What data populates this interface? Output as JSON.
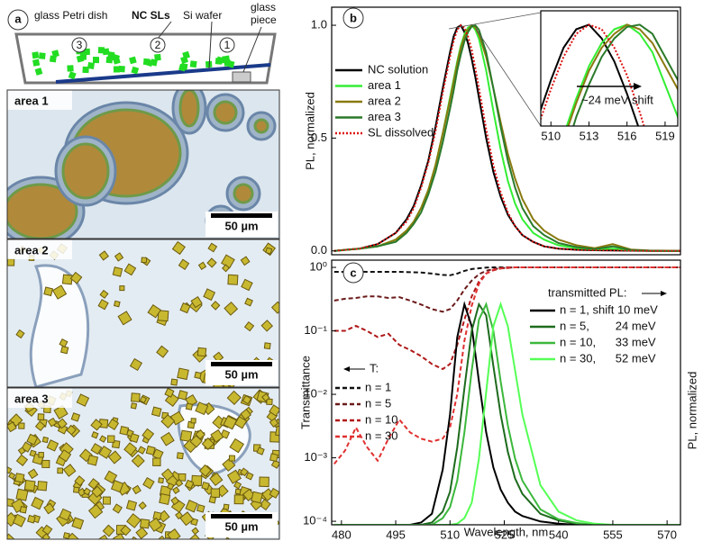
{
  "panel_a": {
    "letter": "a",
    "labels": {
      "dish": "glass Petri dish",
      "sls": "NC SLs",
      "wafer": "Si wafer",
      "piece": [
        "glass",
        "piece"
      ],
      "n3": "3",
      "n2": "2",
      "n1": "1"
    },
    "images": [
      {
        "label": "area 1",
        "scale": "50 µm"
      },
      {
        "label": "area 2",
        "scale": "50 µm"
      },
      {
        "label": "area 3",
        "scale": "50 µm"
      }
    ]
  },
  "chart_data": [
    {
      "type": "line",
      "letter": "b",
      "ylabel": "PL, normalized",
      "x": [
        478,
        485,
        490,
        495,
        498,
        500,
        502,
        504,
        506,
        508,
        510,
        511,
        512,
        513,
        514,
        515,
        516,
        517,
        518,
        520,
        522,
        524,
        526,
        528,
        530,
        533,
        536,
        540,
        545,
        550,
        555,
        560,
        565,
        570,
        574
      ],
      "xlim": [
        477.3,
        573.7
      ],
      "ylim": [
        -0.017,
        1.08
      ],
      "yticks": [
        {
          "value": 0,
          "label": "0.0"
        },
        0.5,
        {
          "value": 1,
          "label": "1.0"
        }
      ],
      "series": [
        {
          "name": "NC solution",
          "color": "#000000",
          "linestyle": "solid",
          "values": [
            0,
            0.01,
            0.03,
            0.08,
            0.14,
            0.2,
            0.29,
            0.4,
            0.55,
            0.72,
            0.88,
            0.95,
            0.99,
            1.0,
            0.97,
            0.92,
            0.85,
            0.77,
            0.68,
            0.5,
            0.35,
            0.24,
            0.16,
            0.11,
            0.07,
            0.04,
            0.02,
            0.01,
            0.005,
            0.003,
            0.002,
            0.001,
            0,
            0,
            0
          ]
        },
        {
          "name": "area 1",
          "color": "#33ee33",
          "linestyle": "solid",
          "values": [
            0,
            0.01,
            0.02,
            0.05,
            0.09,
            0.13,
            0.19,
            0.27,
            0.38,
            0.52,
            0.68,
            0.76,
            0.84,
            0.91,
            0.96,
            0.99,
            1.0,
            0.98,
            0.94,
            0.8,
            0.62,
            0.45,
            0.31,
            0.21,
            0.14,
            0.08,
            0.05,
            0.025,
            0.012,
            0.006,
            0.01,
            0.003,
            0.001,
            0,
            0
          ]
        },
        {
          "name": "area 2",
          "color": "#8a7a10",
          "linestyle": "solid",
          "values": [
            0,
            0.01,
            0.02,
            0.05,
            0.09,
            0.13,
            0.19,
            0.27,
            0.38,
            0.52,
            0.67,
            0.75,
            0.83,
            0.9,
            0.95,
            0.98,
            1.0,
            0.99,
            0.96,
            0.86,
            0.72,
            0.57,
            0.43,
            0.32,
            0.23,
            0.14,
            0.09,
            0.05,
            0.025,
            0.012,
            0.03,
            0.006,
            0.002,
            0.001,
            0
          ]
        },
        {
          "name": "area 3",
          "color": "#2a7a2a",
          "linestyle": "solid",
          "values": [
            0,
            0.01,
            0.02,
            0.04,
            0.08,
            0.12,
            0.17,
            0.25,
            0.35,
            0.48,
            0.63,
            0.71,
            0.8,
            0.87,
            0.93,
            0.97,
            0.995,
            1.0,
            0.98,
            0.88,
            0.72,
            0.55,
            0.4,
            0.28,
            0.19,
            0.11,
            0.07,
            0.035,
            0.017,
            0.008,
            0.02,
            0.004,
            0.001,
            0,
            0
          ]
        },
        {
          "name": "SL dissolved",
          "color": "#dd1111",
          "linestyle": "dotted",
          "values": [
            0,
            0.01,
            0.03,
            0.08,
            0.13,
            0.19,
            0.28,
            0.39,
            0.53,
            0.7,
            0.86,
            0.93,
            0.98,
            1.0,
            0.99,
            0.95,
            0.89,
            0.81,
            0.72,
            0.54,
            0.38,
            0.26,
            0.17,
            0.11,
            0.07,
            0.04,
            0.02,
            0.01,
            0.005,
            0.003,
            0.002,
            0.001,
            0,
            0,
            0
          ]
        }
      ]
    },
    {
      "type": "line",
      "annotation": "~24 meV shift",
      "xlim": [
        509.2,
        520
      ],
      "ylim": [
        0.78,
        1.03
      ],
      "xticks": [
        510,
        513,
        516,
        519
      ]
    },
    {
      "type": "line",
      "letter": "c",
      "ylabel": "Transmittance",
      "y2label": "PL, normalized",
      "xlabel": "Wavelength, nm",
      "legend_title": "T:",
      "legend2_title": "transmitted PL:",
      "log_y": true,
      "x": [
        478,
        481,
        484,
        487,
        490,
        493,
        496,
        499,
        502,
        505,
        508,
        510,
        512,
        514,
        516,
        518,
        520,
        522,
        524,
        526,
        528,
        530,
        535,
        540,
        545,
        550,
        555,
        560,
        565,
        570,
        574
      ],
      "xlim": [
        477.3,
        573.7
      ],
      "ylim": [
        8.8e-05,
        1.3
      ],
      "y2lim": [
        0,
        1.2
      ],
      "xticks": [
        480,
        495,
        510,
        525,
        540,
        555,
        570
      ],
      "yticks": [
        {
          "value": 0.0001,
          "label": "10⁻⁴"
        },
        {
          "value": 0.001,
          "label": "10⁻³"
        },
        {
          "value": 0.01,
          "label": "10⁻²"
        },
        {
          "value": 0.1,
          "label": "10⁻¹"
        },
        {
          "value": 1,
          "label": "10⁰"
        }
      ],
      "series": [
        {
          "name": "n = 1",
          "color": "#111111",
          "linestyle": "dashed",
          "values": [
            0.85,
            0.85,
            0.86,
            0.85,
            0.85,
            0.85,
            0.85,
            0.84,
            0.83,
            0.8,
            0.76,
            0.75,
            0.8,
            0.88,
            0.94,
            0.97,
            0.99,
            1,
            1,
            1,
            1,
            1,
            1,
            1,
            1,
            1,
            1,
            1,
            1,
            1,
            1
          ]
        },
        {
          "name": "n = 5",
          "color": "#6b1a1a",
          "linestyle": "dashed",
          "values": [
            0.3,
            0.32,
            0.33,
            0.35,
            0.35,
            0.33,
            0.34,
            0.3,
            0.26,
            0.22,
            0.2,
            0.22,
            0.3,
            0.45,
            0.62,
            0.78,
            0.88,
            0.94,
            0.97,
            0.99,
            1,
            1,
            1,
            1,
            1,
            1,
            1,
            1,
            1,
            1,
            1
          ]
        },
        {
          "name": "n = 10",
          "color": "#b01818",
          "linestyle": "dashed",
          "values": [
            0.1,
            0.1,
            0.12,
            0.1,
            0.08,
            0.09,
            0.06,
            0.05,
            0.04,
            0.03,
            0.025,
            0.03,
            0.06,
            0.15,
            0.35,
            0.6,
            0.8,
            0.9,
            0.96,
            0.98,
            1,
            1,
            1,
            1,
            1,
            1,
            1,
            1,
            1,
            1,
            1
          ]
        },
        {
          "name": "n = 30",
          "color": "#e03030",
          "linestyle": "dashed",
          "values": [
            0.0008,
            0.0013,
            0.003,
            0.0015,
            0.0009,
            0.002,
            0.004,
            0.0025,
            0.002,
            0.0018,
            0.002,
            0.003,
            0.01,
            0.07,
            0.25,
            0.55,
            0.8,
            0.92,
            0.97,
            0.99,
            1,
            1,
            1,
            1,
            1,
            1,
            1,
            1,
            1,
            1,
            1
          ]
        },
        {
          "name": "n = 1, shift 10 meV",
          "axis": "y2",
          "color": "#000000",
          "linestyle": "solid",
          "values": [
            0,
            0,
            0,
            0,
            0,
            0,
            0,
            0,
            0.01,
            0.05,
            0.25,
            0.5,
            0.85,
            1.0,
            0.9,
            0.65,
            0.42,
            0.26,
            0.16,
            0.1,
            0.06,
            0.04,
            0.015,
            0.005,
            0,
            0,
            0,
            0,
            0,
            0,
            0
          ]
        },
        {
          "name": "n = 5,        24 meV",
          "axis": "y2",
          "color": "#1d6b1d",
          "linestyle": "solid",
          "values": [
            0,
            0,
            0,
            0,
            0,
            0,
            0,
            0,
            0,
            0.01,
            0.06,
            0.15,
            0.35,
            0.62,
            0.88,
            1.0,
            0.95,
            0.72,
            0.5,
            0.33,
            0.21,
            0.14,
            0.05,
            0.02,
            0.005,
            0,
            0,
            0,
            0,
            0,
            0
          ]
        },
        {
          "name": "n = 10,      33 meV",
          "axis": "y2",
          "color": "#3cb83c",
          "linestyle": "solid",
          "values": [
            0,
            0,
            0,
            0,
            0,
            0,
            0,
            0,
            0,
            0,
            0.03,
            0.08,
            0.2,
            0.42,
            0.7,
            0.93,
            1.0,
            0.88,
            0.65,
            0.45,
            0.3,
            0.2,
            0.07,
            0.025,
            0.008,
            0,
            0,
            0,
            0,
            0,
            0
          ]
        },
        {
          "name": "n = 30,      52 meV",
          "axis": "y2",
          "color": "#55ff55",
          "linestyle": "solid",
          "values": [
            0,
            0,
            0,
            0,
            0,
            0,
            0,
            0,
            0,
            0,
            0,
            0,
            0.005,
            0.03,
            0.1,
            0.3,
            0.6,
            0.9,
            1.0,
            0.9,
            0.7,
            0.5,
            0.18,
            0.06,
            0.02,
            0.005,
            0,
            0,
            0,
            0,
            0
          ]
        }
      ]
    }
  ]
}
